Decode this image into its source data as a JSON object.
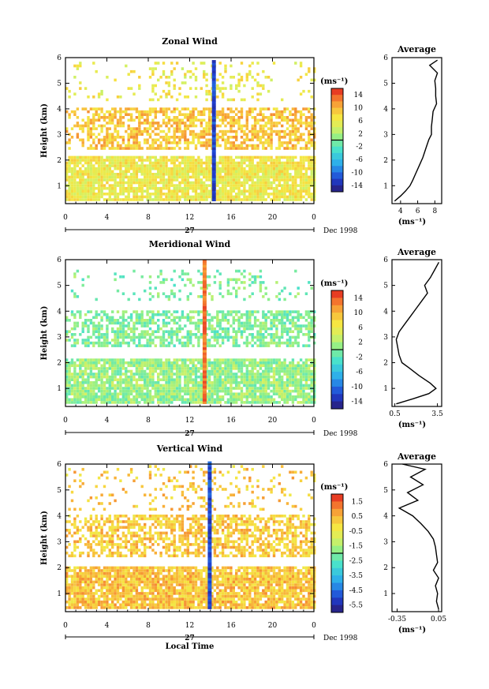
{
  "chart_data": [
    {
      "type": "heatmap",
      "title": "Zonal Wind",
      "ylabel": "Height (km)",
      "ylim": [
        0.3,
        6
      ],
      "y_ticks": [
        "1",
        "2",
        "3",
        "4",
        "5",
        "6"
      ],
      "x_ticks": [
        "0",
        "4",
        "8",
        "12",
        "16",
        "20",
        "0"
      ],
      "xlim": [
        0,
        24
      ],
      "day_label": "27",
      "date_label": "Dec 1998",
      "colorbar": {
        "unit": "(ms⁻¹)",
        "ticks": [
          "14",
          "10",
          "6",
          "2",
          "-2",
          "-6",
          "-10",
          "-14"
        ],
        "range": [
          -16,
          16
        ]
      },
      "bands": [
        {
          "y": [
            0.4,
            2.1
          ],
          "value": 6,
          "note": "near-surface layer"
        },
        {
          "y": [
            2.4,
            4.0
          ],
          "value": 9,
          "note": "mid-level layer"
        },
        {
          "y": [
            4.3,
            5.8
          ],
          "value": 6,
          "note": "isolated upper echoes"
        }
      ],
      "features": [
        {
          "type": "vertical",
          "x": 14.3,
          "y": [
            0.4,
            5.8
          ],
          "value": -12
        }
      ],
      "average_profile": {
        "title": "Average",
        "xlabel": "(ms⁻¹)",
        "x_ticks": [
          "4",
          "6",
          "8"
        ],
        "xlim": [
          3,
          8.8
        ],
        "height": [
          0.4,
          0.6,
          0.8,
          1.0,
          1.2,
          1.5,
          1.8,
          2.1,
          2.5,
          2.8,
          3.0,
          3.3,
          3.6,
          3.9,
          4.2,
          4.5,
          4.8,
          5.1,
          5.4,
          5.7,
          5.9
        ],
        "value": [
          3.3,
          4.0,
          4.6,
          5.1,
          5.4,
          5.8,
          6.2,
          6.6,
          7.0,
          7.3,
          7.6,
          7.6,
          7.7,
          7.8,
          8.2,
          8.1,
          8.1,
          8.0,
          8.3,
          7.4,
          8.3
        ]
      }
    },
    {
      "type": "heatmap",
      "title": "Meridional Wind",
      "ylabel": "Height (km)",
      "ylim": [
        0.3,
        6
      ],
      "y_ticks": [
        "1",
        "2",
        "3",
        "4",
        "5",
        "6"
      ],
      "x_ticks": [
        "0",
        "4",
        "8",
        "12",
        "16",
        "20",
        "0"
      ],
      "xlim": [
        0,
        24
      ],
      "day_label": "27",
      "date_label": "Dec 1998",
      "colorbar": {
        "unit": "(ms⁻¹)",
        "ticks": [
          "14",
          "10",
          "6",
          "2",
          "-2",
          "-6",
          "-10",
          "-14"
        ],
        "range": [
          -16,
          16
        ]
      },
      "bands": [
        {
          "y": [
            0.4,
            2.1
          ],
          "value": 1,
          "note": "near-surface layer"
        },
        {
          "y": [
            2.6,
            4.0
          ],
          "value": 0,
          "note": "mid-level layer"
        },
        {
          "y": [
            4.4,
            5.6
          ],
          "value": 0,
          "note": "isolated upper echoes"
        }
      ],
      "features": [
        {
          "type": "vertical",
          "x": 13.4,
          "y": [
            0.4,
            5.9
          ],
          "value": 13
        }
      ],
      "average_profile": {
        "title": "Average",
        "xlabel": "(ms⁻¹)",
        "x_ticks": [
          "0.5",
          "3.5"
        ],
        "xlim": [
          0.3,
          3.8
        ],
        "height": [
          0.4,
          0.6,
          0.8,
          1.0,
          1.2,
          1.5,
          1.8,
          2.0,
          2.3,
          2.6,
          2.9,
          3.2,
          3.5,
          3.8,
          4.1,
          4.4,
          4.7,
          5.0,
          5.3,
          5.6,
          5.9
        ],
        "value": [
          0.6,
          1.8,
          2.9,
          3.4,
          3.0,
          2.2,
          1.5,
          1.0,
          0.8,
          0.7,
          0.6,
          0.8,
          1.2,
          1.6,
          2.0,
          2.4,
          2.8,
          2.6,
          3.0,
          3.3,
          3.6
        ]
      }
    },
    {
      "type": "heatmap",
      "title": "Vertical Wind",
      "ylabel": "Height (km)",
      "xlabel": "Local Time",
      "ylim": [
        0.3,
        6
      ],
      "y_ticks": [
        "1",
        "2",
        "3",
        "4",
        "5",
        "6"
      ],
      "x_ticks": [
        "0",
        "4",
        "8",
        "12",
        "16",
        "20",
        "0"
      ],
      "xlim": [
        0,
        24
      ],
      "day_label": "27",
      "date_label": "Dec 1998",
      "colorbar": {
        "unit": "(ms⁻¹)",
        "ticks": [
          "1.5",
          "0.5",
          "-0.5",
          "-1.5",
          "-2.5",
          "-3.5",
          "-4.5",
          "-5.5"
        ],
        "range": [
          -6,
          2
        ]
      },
      "bands": [
        {
          "y": [
            0.4,
            2.0
          ],
          "value": 0.3,
          "note": "near-surface layer"
        },
        {
          "y": [
            2.4,
            4.0
          ],
          "value": 0.2,
          "note": "mid-level layer"
        },
        {
          "y": [
            4.2,
            5.9
          ],
          "value": 0.2,
          "note": "isolated upper echoes"
        }
      ],
      "features": [
        {
          "type": "vertical",
          "x": 13.9,
          "y": [
            0.4,
            6.0
          ],
          "value": -5
        }
      ],
      "average_profile": {
        "title": "Average",
        "xlabel": "(ms⁻¹)",
        "x_ticks": [
          "-0.35",
          "0.05"
        ],
        "xlim": [
          -0.4,
          0.08
        ],
        "height": [
          0.4,
          0.7,
          1.0,
          1.3,
          1.6,
          1.9,
          2.2,
          2.5,
          2.8,
          3.1,
          3.4,
          3.7,
          4.0,
          4.3,
          4.6,
          4.9,
          5.2,
          5.5,
          5.8,
          6.0
        ],
        "value": [
          0.05,
          0.03,
          0.04,
          0.02,
          0.05,
          0.0,
          0.04,
          0.03,
          0.02,
          0.0,
          -0.05,
          -0.12,
          -0.2,
          -0.33,
          -0.15,
          -0.25,
          -0.1,
          -0.22,
          -0.08,
          -0.3
        ]
      }
    }
  ]
}
